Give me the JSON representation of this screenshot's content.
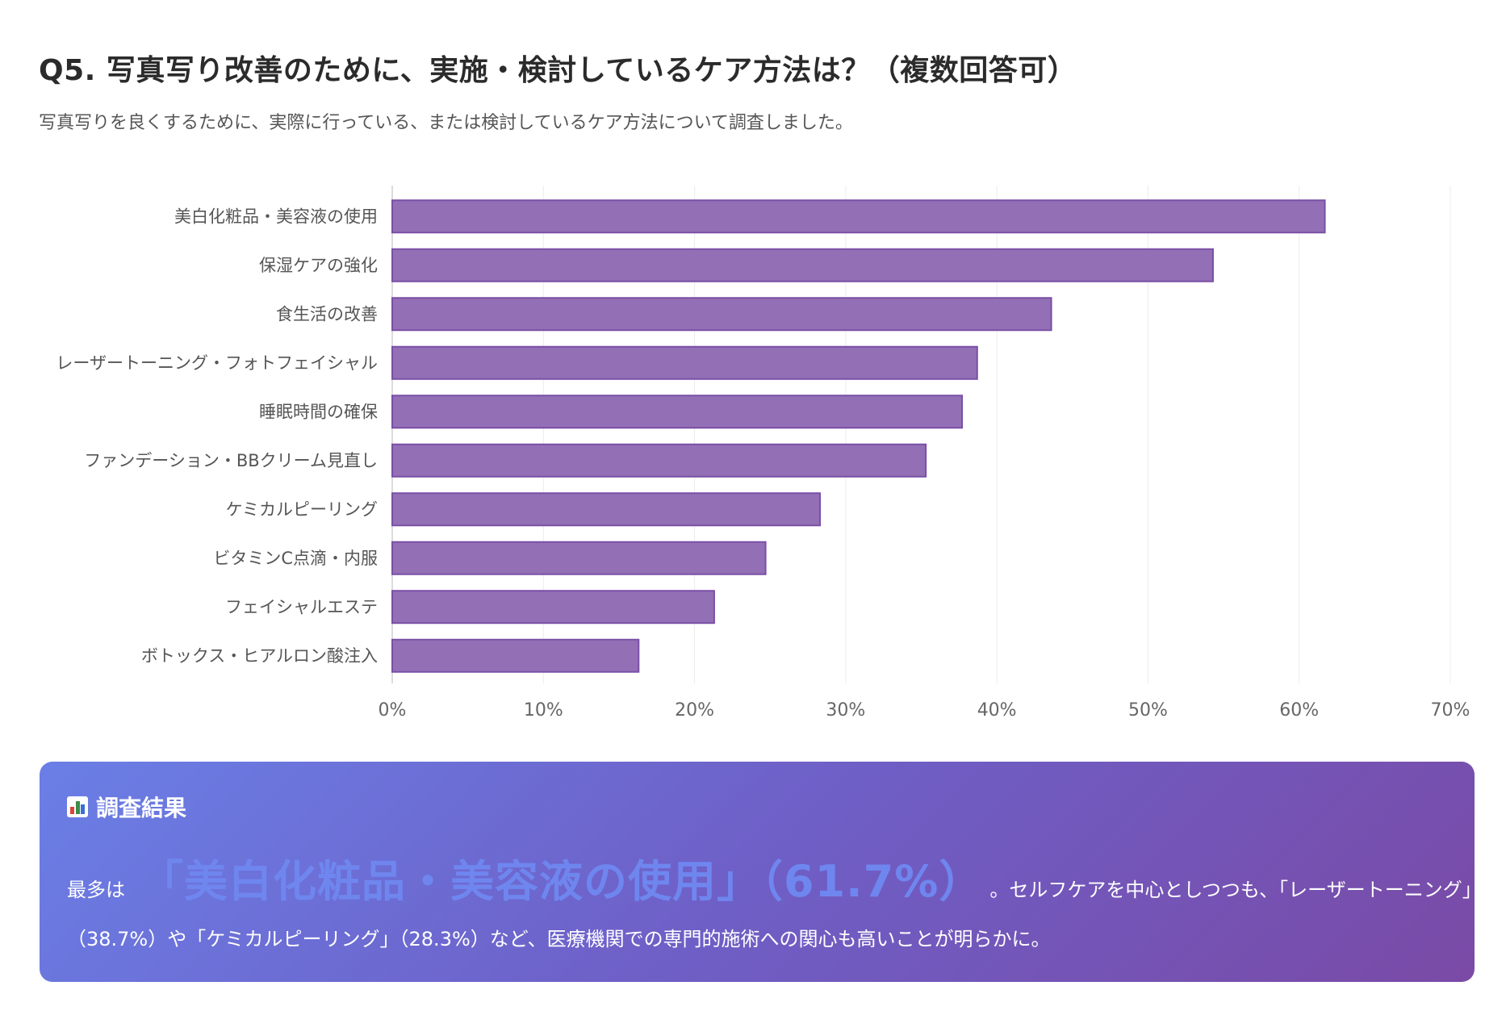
{
  "header": {
    "title": "Q5. 写真写り改善のために、実施・検討しているケア方法は？（複数回答可）",
    "subtitle": "写真写りを良くするために、実際に行っている、または検討しているケア方法について調査しました。"
  },
  "chart_data": {
    "type": "bar",
    "orientation": "horizontal",
    "categories": [
      "美白化粧品・美容液の使用",
      "保湿ケアの強化",
      "食生活の改善",
      "レーザートーニング・フォトフェイシャル",
      "睡眠時間の確保",
      "ファンデーション・BBクリーム見直し",
      "ケミカルピーリング",
      "ビタミンC点滴・内服",
      "フェイシャルエステ",
      "ボトックス・ヒアルロン酸注入"
    ],
    "values": [
      61.7,
      54.3,
      43.6,
      38.7,
      37.7,
      35.3,
      28.3,
      24.7,
      21.3,
      16.3
    ],
    "xlim": [
      0,
      70
    ],
    "xticks": [
      "0%",
      "10%",
      "20%",
      "30%",
      "40%",
      "50%",
      "60%",
      "70%"
    ],
    "grid": true,
    "legend": "none",
    "bar_color": "#9370b6",
    "bar_border": "#7a4fa6",
    "title": "",
    "xlabel": "",
    "ylabel": ""
  },
  "result": {
    "heading": "調査結果",
    "prefix": "最多は",
    "highlight": "「美白化粧品・美容液の使用」（61.7%）",
    "line1_rest": "。セルフケアを中心としつつも、「レーザートーニング」",
    "line2": "（38.7%）や「ケミカルピーリング」（28.3%）など、医療機関での専門的施術への関心も高いことが明らかに。",
    "icon": "bar-chart-icon",
    "gradient_start": "#6a7fe6",
    "gradient_end": "#7a4aa6"
  }
}
